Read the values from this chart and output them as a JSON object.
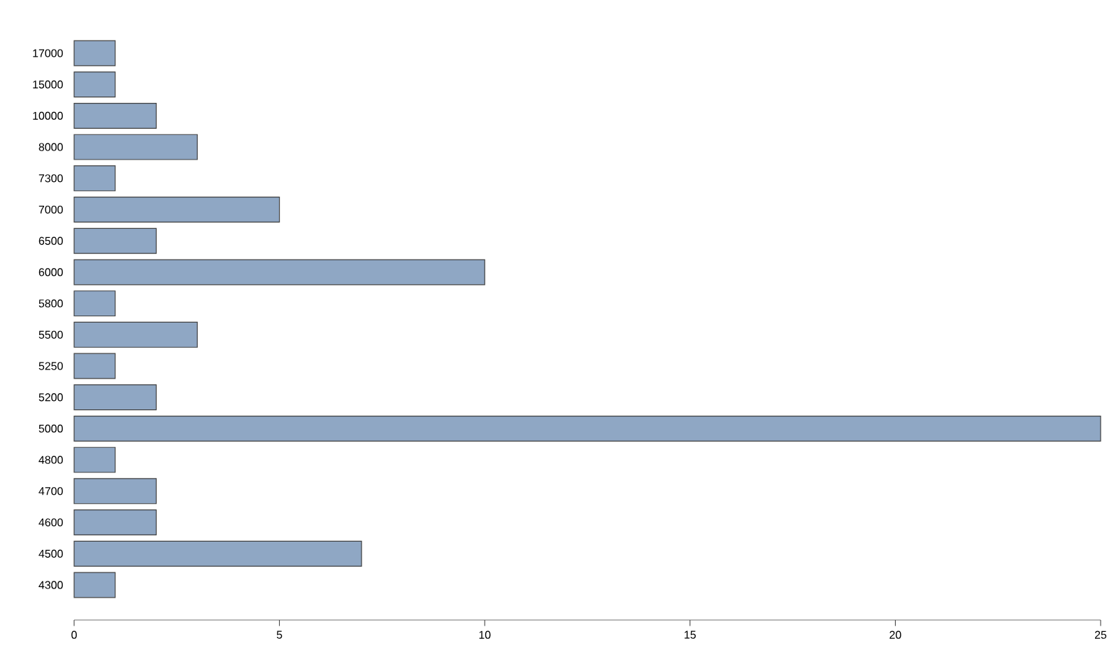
{
  "chart_data": {
    "type": "bar",
    "orientation": "horizontal",
    "categories": [
      "17000",
      "15000",
      "10000",
      "8000",
      "7300",
      "7000",
      "6500",
      "6000",
      "5800",
      "5500",
      "5250",
      "5200",
      "5000",
      "4800",
      "4700",
      "4600",
      "4500",
      "4300"
    ],
    "values": [
      1,
      1,
      2,
      3,
      1,
      5,
      2,
      10,
      1,
      3,
      1,
      2,
      25,
      1,
      2,
      2,
      7,
      1
    ],
    "color": "#8fa7c4",
    "xlim": [
      0,
      25
    ],
    "xticks": [
      0,
      5,
      10,
      15,
      20,
      25
    ]
  }
}
